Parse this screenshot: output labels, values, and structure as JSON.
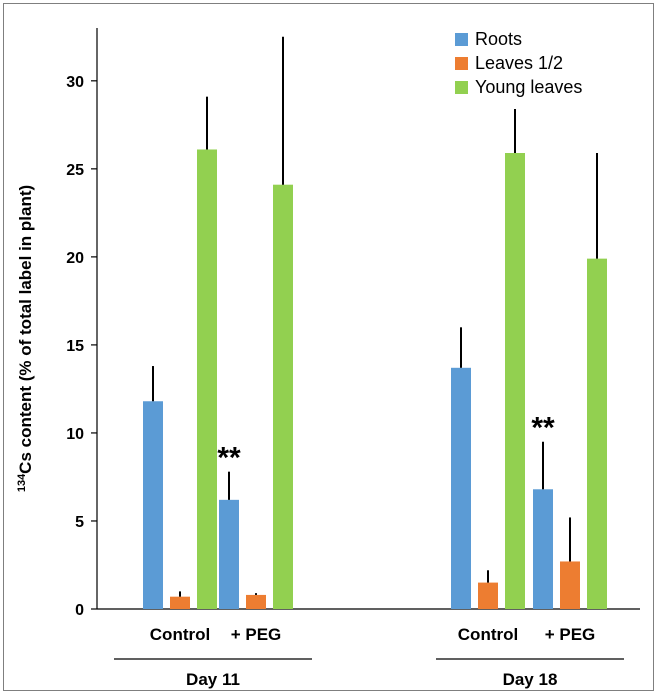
{
  "chart_data": {
    "type": "bar",
    "ylabel_sup": "134",
    "ylabel_rest": "Cs content (% of total label in plant)",
    "xlabel": "",
    "ylim": [
      0,
      33
    ],
    "yticks": [
      "0",
      "5",
      "10",
      "15",
      "20",
      "25",
      "30"
    ],
    "ytick_values": [
      0,
      5,
      10,
      15,
      20,
      25,
      30
    ],
    "categories": [
      "Control",
      "+ PEG",
      "Control",
      "+ PEG"
    ],
    "groups": [
      {
        "label": "Day 11",
        "categories": [
          0,
          1
        ]
      },
      {
        "label": "Day 18",
        "categories": [
          2,
          3
        ]
      }
    ],
    "series": [
      {
        "name": "Roots",
        "color": "#5b9bd5",
        "values": [
          11.8,
          6.2,
          13.7,
          6.8
        ],
        "errors": [
          2.0,
          1.6,
          2.3,
          2.7
        ]
      },
      {
        "name": "Leaves 1/2",
        "color": "#ed7d31",
        "values": [
          0.7,
          0.8,
          1.5,
          2.7
        ],
        "errors": [
          0.3,
          0.1,
          0.7,
          2.5
        ]
      },
      {
        "name": "Young leaves",
        "color": "#92d050",
        "values": [
          26.1,
          24.1,
          25.9,
          19.9
        ],
        "errors": [
          3.0,
          8.4,
          2.5,
          6.0
        ]
      }
    ],
    "annotations": [
      {
        "text": "**",
        "category": 1,
        "series": 0
      },
      {
        "text": "**",
        "category": 3,
        "series": 0
      }
    ],
    "legend_position": "top-right",
    "grid": false
  }
}
